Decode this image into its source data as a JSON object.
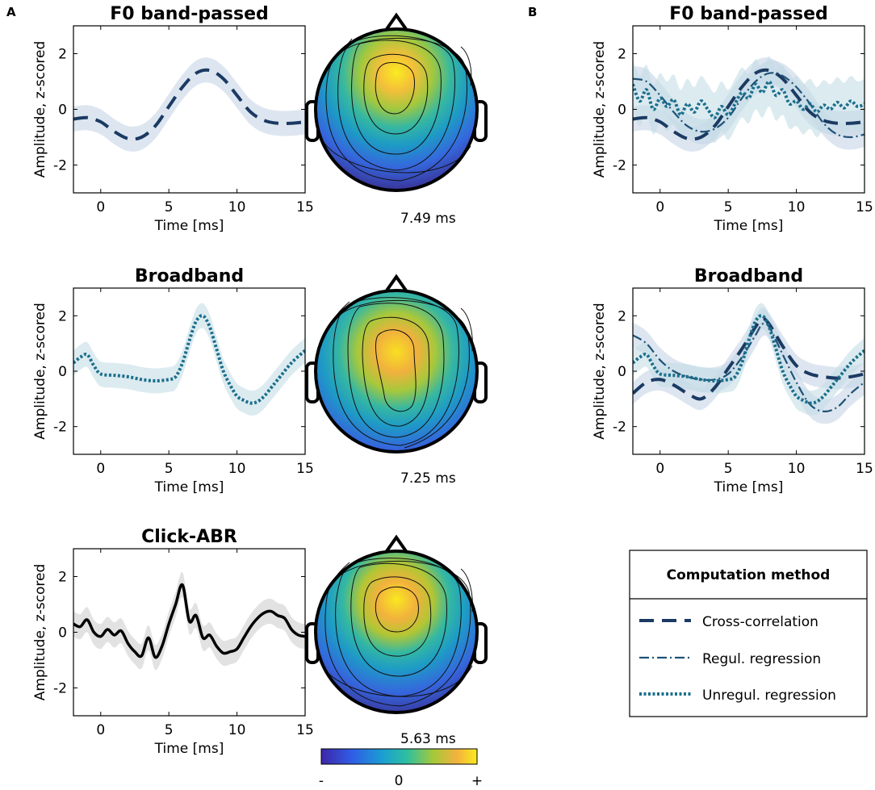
{
  "panel_labels": {
    "a": "A",
    "b": "B"
  },
  "colors": {
    "cross": "#1b3a63",
    "regul": "#1f5277",
    "unregul": "#1b6f8c",
    "click": "#000000",
    "band_blue": "#c6d6e6",
    "band_teal": "#c4dde6",
    "band_gray": "#cfcfcf"
  },
  "legend": {
    "title": "Computation method",
    "items": [
      {
        "label": "Cross-correlation",
        "style": "cross"
      },
      {
        "label": "Regul. regression",
        "style": "regul"
      },
      {
        "label": "Unregul. regression",
        "style": "unregul"
      }
    ]
  },
  "colorbar": {
    "labels": [
      "-",
      "0",
      "+"
    ]
  },
  "topomaps": [
    {
      "latency": "7.49 ms"
    },
    {
      "latency": "7.25 ms"
    },
    {
      "latency": "5.63 ms"
    }
  ],
  "chart_data": [
    {
      "id": "a1",
      "type": "line",
      "title": "F0 band-passed",
      "xlabel": "Time [ms]",
      "ylabel": "Amplitude, z-scored",
      "xlim": [
        -2,
        15
      ],
      "ylim": [
        -3,
        3
      ],
      "xticks": [
        0,
        5,
        10,
        15
      ],
      "yticks": [
        -2,
        0,
        2
      ],
      "series": [
        {
          "name": "Cross-correlation",
          "style": "cross",
          "band": 0.45,
          "x": [
            -2,
            -1,
            0,
            1,
            2,
            3,
            4,
            5,
            6,
            7,
            8,
            9,
            10,
            11,
            12,
            13,
            14,
            15
          ],
          "y": [
            -0.35,
            -0.3,
            -0.45,
            -0.8,
            -1.05,
            -1.0,
            -0.6,
            0.1,
            0.8,
            1.3,
            1.4,
            1.1,
            0.5,
            -0.1,
            -0.4,
            -0.5,
            -0.5,
            -0.45
          ]
        }
      ]
    },
    {
      "id": "a2",
      "type": "line",
      "title": "Broadband",
      "xlabel": "Time [ms]",
      "ylabel": "Amplitude, z-scored",
      "xlim": [
        -2,
        15
      ],
      "ylim": [
        -3,
        3
      ],
      "xticks": [
        0,
        5,
        10,
        15
      ],
      "yticks": [
        -2,
        0,
        2
      ],
      "series": [
        {
          "name": "Unregul. regression",
          "style": "unregul",
          "band": 0.45,
          "x": [
            -2,
            -1.5,
            -1,
            -0.5,
            0,
            1,
            2,
            3,
            4,
            5,
            5.5,
            6,
            6.5,
            7,
            7.5,
            8,
            8.5,
            9,
            9.5,
            10,
            10.5,
            11,
            11.5,
            12,
            12.5,
            13,
            14,
            15
          ],
          "y": [
            0.3,
            0.5,
            0.6,
            0.2,
            -0.1,
            -0.15,
            -0.2,
            -0.3,
            -0.35,
            -0.3,
            -0.2,
            0.3,
            1.1,
            1.8,
            2.0,
            1.6,
            0.8,
            0.0,
            -0.5,
            -0.9,
            -1.05,
            -1.15,
            -1.1,
            -0.9,
            -0.6,
            -0.3,
            0.3,
            0.75
          ]
        }
      ]
    },
    {
      "id": "a3",
      "type": "line",
      "title": "Click-ABR",
      "xlabel": "Time [ms]",
      "ylabel": "Amplitude, z-scored",
      "xlim": [
        -2,
        15
      ],
      "ylim": [
        -3,
        3
      ],
      "xticks": [
        0,
        5,
        10,
        15
      ],
      "yticks": [
        -2,
        0,
        2
      ],
      "series": [
        {
          "name": "Click-ABR",
          "style": "click",
          "band": 0.45,
          "x": [
            -2,
            -1.5,
            -1,
            -0.5,
            0,
            0.5,
            1,
            1.5,
            2,
            2.5,
            3,
            3.5,
            4,
            4.5,
            5,
            5.5,
            6,
            6.5,
            7,
            7.5,
            8,
            8.5,
            9,
            9.5,
            10,
            10.5,
            11,
            11.5,
            12,
            12.5,
            13,
            13.5,
            14,
            14.5,
            15
          ],
          "y": [
            0.3,
            0.2,
            0.45,
            0.0,
            -0.15,
            0.1,
            -0.1,
            0.05,
            -0.4,
            -0.7,
            -0.85,
            -0.2,
            -0.9,
            -0.5,
            0.3,
            1.0,
            1.7,
            0.4,
            0.6,
            -0.2,
            -0.1,
            -0.5,
            -0.75,
            -0.7,
            -0.6,
            -0.2,
            0.2,
            0.5,
            0.7,
            0.75,
            0.6,
            0.5,
            0.1,
            -0.1,
            -0.15
          ]
        }
      ]
    },
    {
      "id": "b1",
      "type": "line",
      "title": "F0 band-passed",
      "xlabel": "Time [ms]",
      "ylabel": "Amplitude, z-scored",
      "xlim": [
        -2,
        15
      ],
      "ylim": [
        -3,
        3
      ],
      "xticks": [
        0,
        5,
        10,
        15
      ],
      "yticks": [
        -2,
        0,
        2
      ],
      "series": [
        {
          "name": "Cross-correlation",
          "style": "cross",
          "band": 0.45,
          "x": [
            -2,
            -1,
            0,
            1,
            2,
            3,
            4,
            5,
            6,
            7,
            8,
            9,
            10,
            11,
            12,
            13,
            14,
            15
          ],
          "y": [
            -0.35,
            -0.3,
            -0.45,
            -0.8,
            -1.05,
            -1.0,
            -0.6,
            0.1,
            0.8,
            1.3,
            1.4,
            1.1,
            0.5,
            -0.1,
            -0.4,
            -0.5,
            -0.5,
            -0.45
          ]
        },
        {
          "name": "Regul. regression",
          "style": "regul",
          "band": 0.45,
          "x": [
            -2,
            -1,
            0,
            1,
            2,
            3,
            4,
            5,
            6,
            7,
            8,
            9,
            10,
            11,
            12,
            13,
            14,
            15
          ],
          "y": [
            1.1,
            1.0,
            0.5,
            -0.1,
            -0.6,
            -0.8,
            -0.7,
            -0.3,
            0.4,
            1.0,
            1.3,
            1.2,
            0.8,
            0.2,
            -0.5,
            -0.9,
            -1.0,
            -0.9
          ]
        },
        {
          "name": "Unregul. regression",
          "style": "unregul",
          "band": 0.9,
          "x": [
            -2,
            -1.5,
            -1,
            -0.5,
            0,
            0.5,
            1,
            1.5,
            2,
            2.5,
            3,
            3.5,
            4,
            4.5,
            5,
            5.5,
            6,
            6.5,
            7,
            7.5,
            8,
            8.5,
            9,
            9.5,
            10,
            10.5,
            11,
            11.5,
            12,
            12.5,
            13,
            13.5,
            14,
            14.5,
            15
          ],
          "y": [
            0.9,
            0.3,
            0.7,
            0.0,
            0.4,
            0.1,
            0.35,
            -0.2,
            0.2,
            -0.1,
            0.3,
            0.0,
            -0.3,
            0.1,
            -0.2,
            0.2,
            0.6,
            0.4,
            0.9,
            0.6,
            1.0,
            0.5,
            0.7,
            0.2,
            0.3,
            0.0,
            0.2,
            -0.1,
            0.15,
            0.0,
            0.25,
            0.05,
            0.3,
            0.1,
            0.2
          ]
        }
      ]
    },
    {
      "id": "b2",
      "type": "line",
      "title": "Broadband",
      "xlabel": "Time [ms]",
      "ylabel": "Amplitude, z-scored",
      "xlim": [
        -2,
        15
      ],
      "ylim": [
        -3,
        3
      ],
      "xticks": [
        0,
        5,
        10,
        15
      ],
      "yticks": [
        -2,
        0,
        2
      ],
      "series": [
        {
          "name": "Cross-correlation",
          "style": "cross",
          "band": 0.4,
          "x": [
            -2,
            -1,
            0,
            1,
            2,
            3,
            4,
            5,
            6,
            7,
            7.5,
            8,
            9,
            10,
            11,
            12,
            13,
            14,
            15
          ],
          "y": [
            -0.8,
            -0.4,
            -0.3,
            -0.5,
            -0.8,
            -1.0,
            -0.6,
            0.1,
            0.8,
            1.6,
            1.9,
            1.7,
            0.9,
            0.2,
            -0.1,
            -0.2,
            -0.25,
            -0.2,
            -0.1
          ]
        },
        {
          "name": "Regul. regression",
          "style": "regul",
          "band": 0.45,
          "x": [
            -2,
            -1,
            0,
            1,
            2,
            3,
            4,
            5,
            6,
            7,
            7.5,
            8,
            9,
            10,
            11,
            12,
            13,
            14,
            15
          ],
          "y": [
            1.3,
            1.0,
            0.4,
            0.0,
            -0.2,
            -0.3,
            -0.3,
            -0.1,
            0.5,
            1.3,
            1.7,
            1.6,
            0.6,
            -0.4,
            -1.2,
            -1.45,
            -1.3,
            -0.8,
            -0.4
          ]
        },
        {
          "name": "Unregul. regression",
          "style": "unregul",
          "band": 0.45,
          "x": [
            -2,
            -1.5,
            -1,
            -0.5,
            0,
            1,
            2,
            3,
            4,
            5,
            5.5,
            6,
            6.5,
            7,
            7.5,
            8,
            8.5,
            9,
            9.5,
            10,
            10.5,
            11,
            11.5,
            12,
            12.5,
            13,
            14,
            15
          ],
          "y": [
            0.3,
            0.5,
            0.6,
            0.2,
            -0.1,
            -0.15,
            -0.2,
            -0.3,
            -0.35,
            -0.3,
            -0.2,
            0.3,
            1.1,
            1.8,
            2.0,
            1.6,
            0.8,
            0.0,
            -0.5,
            -0.9,
            -1.05,
            -1.15,
            -1.1,
            -0.9,
            -0.6,
            -0.3,
            0.3,
            0.75
          ]
        }
      ]
    }
  ]
}
